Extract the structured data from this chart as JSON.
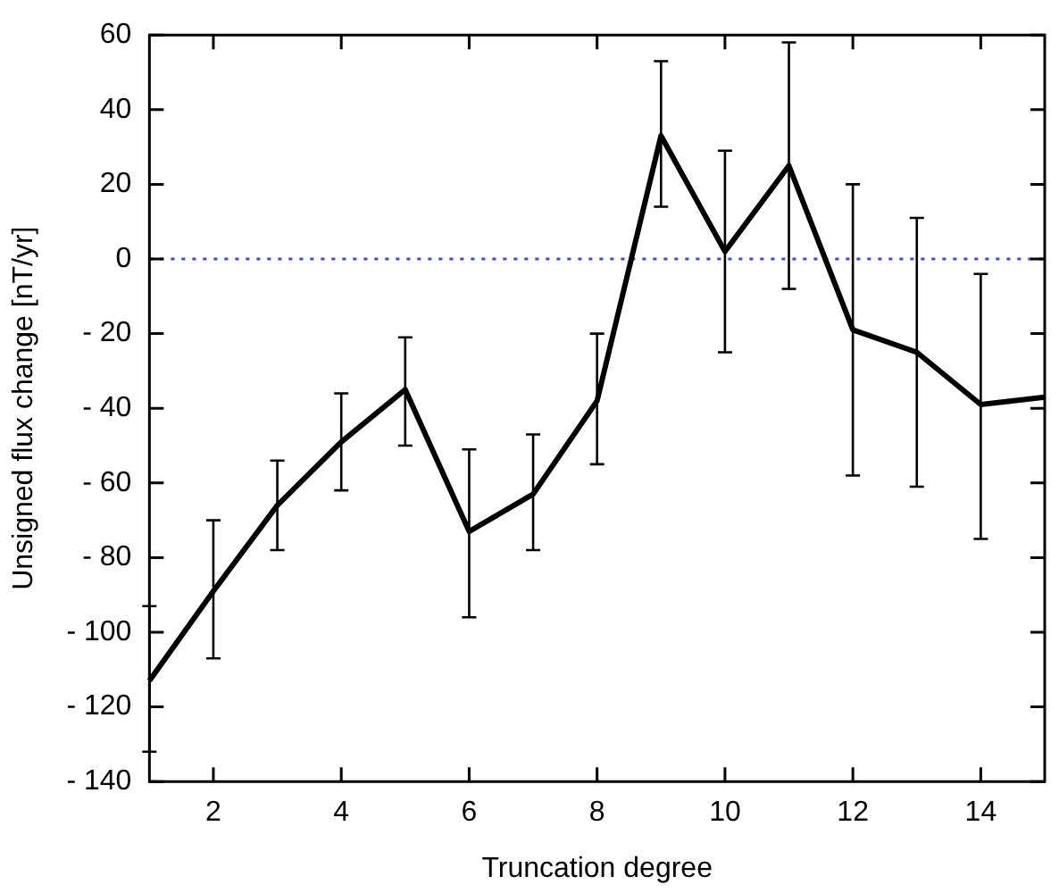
{
  "chart_data": {
    "type": "line",
    "xlabel": "Truncation degree",
    "ylabel": "Unsigned flux change [nT/yr]",
    "x": [
      1,
      2,
      3,
      4,
      5,
      6,
      7,
      8,
      9,
      10,
      11,
      12,
      13,
      14,
      15
    ],
    "series": [
      {
        "color": "#000000",
        "values": [
          -113,
          -89,
          -66,
          -49,
          -35,
          -73,
          -63,
          -38,
          33,
          2,
          25,
          -19,
          -25,
          -39,
          -37
        ],
        "errors": [
          [
            -132,
            -93
          ],
          [
            -107,
            -70
          ],
          [
            -78,
            -54
          ],
          [
            -62,
            -36
          ],
          [
            -50,
            -21
          ],
          [
            -96,
            -51
          ],
          [
            -78,
            -47
          ],
          [
            -55,
            -20
          ],
          [
            14,
            53
          ],
          [
            -25,
            29
          ],
          [
            -8,
            58
          ],
          [
            -58,
            20
          ],
          [
            -61,
            11
          ],
          [
            -75,
            -4
          ],
          null
        ]
      }
    ],
    "xlim": [
      1,
      15
    ],
    "ylim": [
      -140,
      60
    ],
    "xticks": [
      2,
      4,
      6,
      8,
      10,
      12,
      14
    ],
    "yticks": [
      {
        "value": -140,
        "label": "- 140"
      },
      {
        "value": -120,
        "label": "- 120"
      },
      {
        "value": -100,
        "label": "- 100"
      },
      {
        "value": -80,
        "label": "- 80"
      },
      {
        "value": -60,
        "label": "- 60"
      },
      {
        "value": -40,
        "label": "- 40"
      },
      {
        "value": -20,
        "label": "- 20"
      },
      0,
      20,
      40,
      60
    ],
    "ref_lines": [
      {
        "axis": "y",
        "value": 0,
        "color": "#4040ff",
        "line_style": "dotted"
      }
    ],
    "marker": "none",
    "line_style": "solid",
    "legend": false
  }
}
